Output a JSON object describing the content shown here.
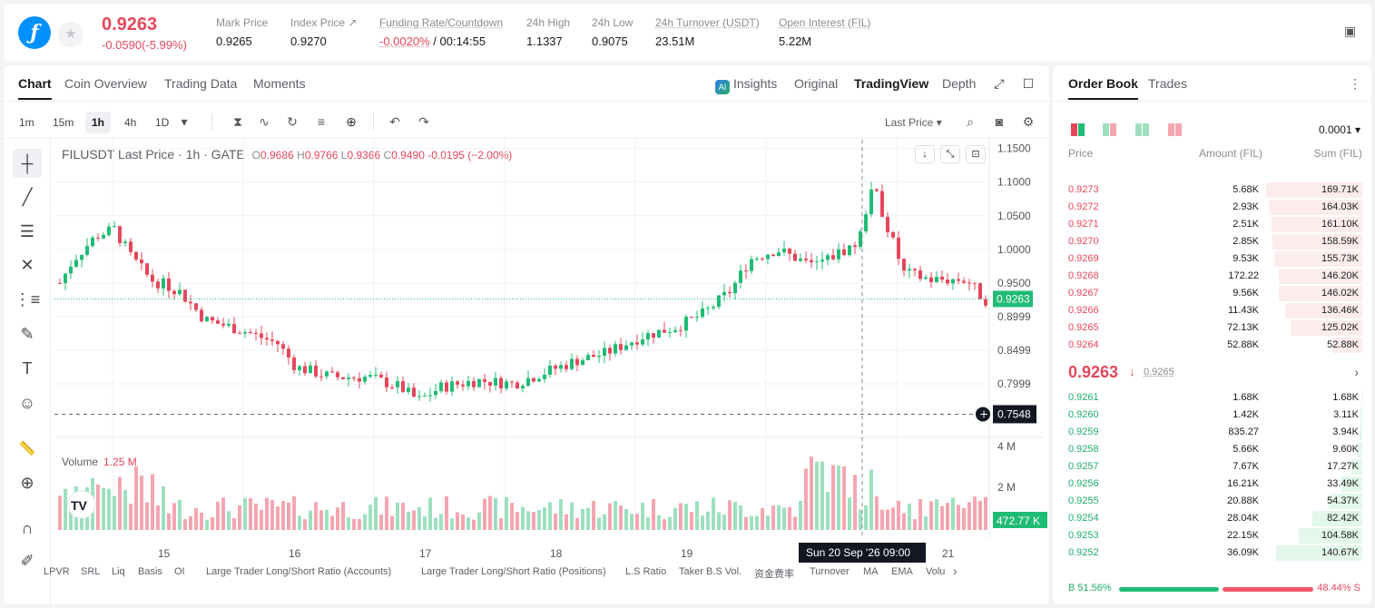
{
  "header": {
    "logo_glyph": "ƒ",
    "star_glyph": "★",
    "last_price": "0.9263",
    "change": "-0.0590(-5.99%)",
    "stats": [
      {
        "label": "Mark Price",
        "value": "0.9265"
      },
      {
        "label": "Index Price ↗",
        "value": "0.9270"
      },
      {
        "label": "Funding Rate/Countdown",
        "value_neg": "-0.0020%",
        "value": " / 00:14:55"
      },
      {
        "label": "24h High",
        "value": "1.1337"
      },
      {
        "label": "24h Low",
        "value": "0.9075"
      },
      {
        "label": "24h Turnover (USDT)",
        "value": "23.51M"
      },
      {
        "label": "Open Interest (FIL)",
        "value": "5.22M"
      }
    ],
    "icon_full": "▣"
  },
  "chart_tabs": [
    "Chart",
    "Coin Overview",
    "Trading Data",
    "Moments"
  ],
  "view_tabs": {
    "ai_badge": "AI",
    "insights": "Insights",
    "original": "Original",
    "tradingview": "TradingView",
    "depth": "Depth"
  },
  "view_icons": {
    "expand": "⤢",
    "window": "☐"
  },
  "timeframes": [
    "1m",
    "15m",
    "1h",
    "4h",
    "1D"
  ],
  "timeframe_selected": "1h",
  "toolbar_icons": {
    "dropdown": "▾",
    "candles": "⧗",
    "indicators": "∿",
    "replay": "↻",
    "templates": "≡",
    "add": "⊕",
    "undo": "↶",
    "redo": "↷",
    "search": "⌕",
    "camera": "◙",
    "settings": "⚙"
  },
  "price_source": "Last Price ▾",
  "left_tool_icons": [
    "┼",
    "╱",
    "☰",
    "✕",
    "⋮≡",
    "✎",
    "T",
    "☺",
    "📏",
    "⊕",
    "∩",
    "✐"
  ],
  "legend": {
    "symbol": "FILUSDT Last Price · 1h · GATE",
    "o_lbl": "O",
    "o": "0.9686",
    "h_lbl": "H",
    "h": "0.9766",
    "l_lbl": "L",
    "l": "0.9366",
    "c_lbl": "C",
    "c": "0.9490",
    "chg": "-0.0195 (−2.00%)"
  },
  "volume_legend": {
    "label": "Volume",
    "value": "1.25 M"
  },
  "chart_buttons": {
    "down": "↓",
    "collapse": "⤡",
    "fit": "⊡"
  },
  "price_axis": [
    "1.1500",
    "1.1000",
    "1.0500",
    "1.0000",
    "0.9500",
    "0.8999",
    "0.8499",
    "0.7999"
  ],
  "price_axis_current": "0.9263",
  "crosshair_price": "0.7548",
  "volume_axis": [
    "4 M",
    "2 M"
  ],
  "volume_current": "472.77 K",
  "time_axis": [
    "15",
    "16",
    "17",
    "18",
    "19",
    "21"
  ],
  "crosshair_time": "Sun 20 Sep '26   09:00",
  "tv_logo": "TV",
  "bottom_indicators": [
    "LPVR",
    "SRL",
    "Liq",
    "Basis",
    "OI",
    "Large Trader Long/Short Ratio (Accounts)",
    "Large Trader Long/Short Ratio (Positions)",
    "L.S Ratio",
    "Taker B.S Vol.",
    "资金费率",
    "Turnover",
    "MA",
    "EMA",
    "Volu"
  ],
  "bottom_chevron": "›",
  "orderbook": {
    "tabs": [
      "Order Book",
      "Trades"
    ],
    "menu_icon": "⋮",
    "precision": "0.0001 ▾",
    "headers": {
      "price": "Price",
      "amount": "Amount (FIL)",
      "sum": "Sum (FIL)"
    },
    "asks": [
      {
        "price": "0.9273",
        "amount": "5.68K",
        "sum": "169.71K",
        "depth": 0.98
      },
      {
        "price": "0.9272",
        "amount": "2.93K",
        "sum": "164.03K",
        "depth": 0.95
      },
      {
        "price": "0.9271",
        "amount": "2.51K",
        "sum": "161.10K",
        "depth": 0.93
      },
      {
        "price": "0.9270",
        "amount": "2.85K",
        "sum": "158.59K",
        "depth": 0.92
      },
      {
        "price": "0.9269",
        "amount": "9.53K",
        "sum": "155.73K",
        "depth": 0.9
      },
      {
        "price": "0.9268",
        "amount": "172.22",
        "sum": "146.20K",
        "depth": 0.85
      },
      {
        "price": "0.9267",
        "amount": "9.56K",
        "sum": "146.02K",
        "depth": 0.85
      },
      {
        "price": "0.9266",
        "amount": "11.43K",
        "sum": "136.46K",
        "depth": 0.79
      },
      {
        "price": "0.9265",
        "amount": "72.13K",
        "sum": "125.02K",
        "depth": 0.73
      },
      {
        "price": "0.9264",
        "amount": "52.88K",
        "sum": "52.88K",
        "depth": 0.31
      }
    ],
    "mid_price": "0.9263",
    "mid_arrow": "↓",
    "mark_price": "0.9265",
    "mid_chevron": "›",
    "bids": [
      {
        "price": "0.9261",
        "amount": "1.68K",
        "sum": "1.68K",
        "depth": 0.01
      },
      {
        "price": "0.9260",
        "amount": "1.42K",
        "sum": "3.11K",
        "depth": 0.02
      },
      {
        "price": "0.9259",
        "amount": "835.27",
        "sum": "3.94K",
        "depth": 0.03
      },
      {
        "price": "0.9258",
        "amount": "5.66K",
        "sum": "9.60K",
        "depth": 0.06
      },
      {
        "price": "0.9257",
        "amount": "7.67K",
        "sum": "17.27K",
        "depth": 0.11
      },
      {
        "price": "0.9256",
        "amount": "16.21K",
        "sum": "33.49K",
        "depth": 0.21
      },
      {
        "price": "0.9255",
        "amount": "20.88K",
        "sum": "54.37K",
        "depth": 0.34
      },
      {
        "price": "0.9254",
        "amount": "28.04K",
        "sum": "82.42K",
        "depth": 0.51
      },
      {
        "price": "0.9253",
        "amount": "22.15K",
        "sum": "104.58K",
        "depth": 0.65
      },
      {
        "price": "0.9252",
        "amount": "36.09K",
        "sum": "140.67K",
        "depth": 0.88
      }
    ],
    "buy_ratio": "B 51.56%",
    "sell_ratio": "48.44% S",
    "buy_fraction": 0.5156
  },
  "colors": {
    "up": "#20bc75",
    "down": "#e5475b",
    "up_vol": "#9ee0be",
    "down_vol": "#f4a6b0"
  }
}
